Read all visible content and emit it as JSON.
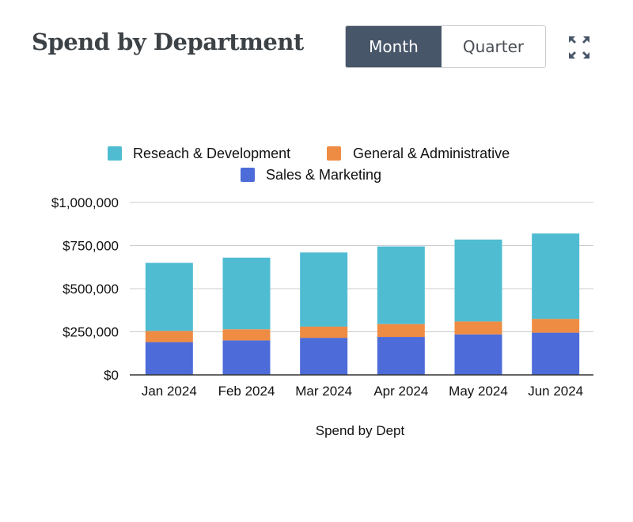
{
  "header": {
    "title": "Spend by Department",
    "toggle": {
      "month_label": "Month",
      "quarter_label": "Quarter",
      "selected": "Month"
    },
    "expand_icon": "expand-icon"
  },
  "colors": {
    "header_text": "#3d4246",
    "toggle_active_bg": "#48566a",
    "research": "#4fbcd2",
    "general": "#ef8c43",
    "sales": "#4d6cd9",
    "grid": "#cccccc",
    "axis": "#333333"
  },
  "chart_data": {
    "type": "bar",
    "stacked": true,
    "categories": [
      "Jan 2024",
      "Feb 2024",
      "Mar 2024",
      "Apr 2024",
      "May 2024",
      "Jun 2024"
    ],
    "series": [
      {
        "name": "Sales & Marketing",
        "color": "#4d6cd9",
        "values": [
          190000,
          200000,
          215000,
          220000,
          235000,
          245000
        ]
      },
      {
        "name": "General & Administrative",
        "color": "#ef8c43",
        "values": [
          65000,
          65000,
          65000,
          75000,
          75000,
          80000
        ]
      },
      {
        "name": "Reseach & Development",
        "color": "#4fbcd2",
        "values": [
          395000,
          415000,
          430000,
          450000,
          475000,
          495000
        ]
      }
    ],
    "legend": [
      {
        "label": "Reseach & Development",
        "color": "#4fbcd2"
      },
      {
        "label": "General & Administrative",
        "color": "#ef8c43"
      },
      {
        "label": "Sales & Marketing",
        "color": "#4d6cd9"
      }
    ],
    "legend_position": "top",
    "xlabel": "Spend by Dept",
    "ylabel": "",
    "ylim": [
      0,
      1000000
    ],
    "yticks": [
      0,
      250000,
      500000,
      750000,
      1000000
    ],
    "ytick_labels": [
      "$0",
      "$250,000",
      "$500,000",
      "$750,000",
      "$1,000,000"
    ],
    "grid": true
  }
}
